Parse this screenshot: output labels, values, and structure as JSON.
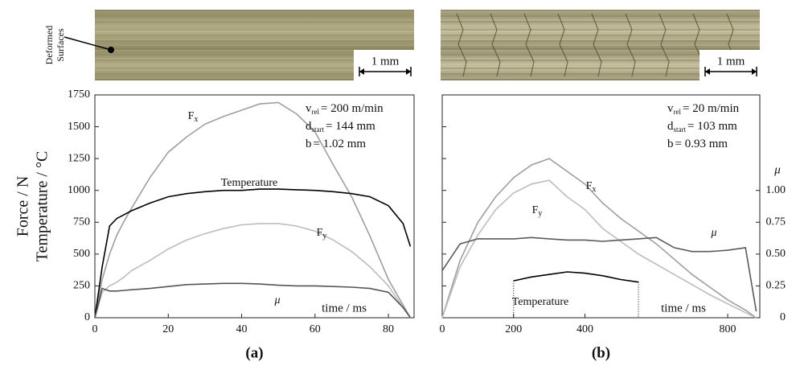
{
  "chart_data": [
    {
      "type": "line",
      "panel_label": "(a)",
      "image_label": [
        "Deformed",
        "Surfaces"
      ],
      "scale_bar": "1 mm",
      "ylabel": [
        "Force / N",
        "Temperature / °C"
      ],
      "xlabel": "time / ms",
      "annotations": [
        {
          "symbol": "v",
          "subscript": "rel",
          "text": "= 200 m/min"
        },
        {
          "symbol": "d",
          "subscript": "start",
          "text": "= 144 mm"
        },
        {
          "symbol": "b",
          "subscript": null,
          "text": "= 1.02 mm"
        }
      ],
      "xlim": [
        0,
        87
      ],
      "xticks": [
        0,
        20,
        40,
        60,
        80
      ],
      "ylim": [
        0,
        1750
      ],
      "yticks": [
        0,
        250,
        500,
        750,
        1000,
        1250,
        1500,
        1750
      ],
      "ytick_labels": true,
      "x": [
        0,
        2,
        4,
        6,
        8,
        10,
        15,
        20,
        25,
        30,
        35,
        40,
        45,
        50,
        55,
        60,
        65,
        70,
        75,
        80,
        84,
        86
      ],
      "series": [
        {
          "name": "Fx",
          "color": "#9e9e9e",
          "values": [
            0,
            300,
            500,
            650,
            760,
            860,
            1100,
            1300,
            1420,
            1520,
            1580,
            1630,
            1680,
            1690,
            1600,
            1460,
            1200,
            950,
            640,
            300,
            100,
            0
          ]
        },
        {
          "name": "Temperature",
          "color": "#000000",
          "values": [
            0,
            400,
            720,
            780,
            810,
            840,
            900,
            950,
            975,
            990,
            1000,
            1000,
            1010,
            1010,
            1005,
            1000,
            990,
            975,
            950,
            880,
            740,
            560
          ]
        },
        {
          "name": "Fy",
          "color": "#bdbdbd",
          "values": [
            0,
            200,
            250,
            280,
            320,
            370,
            450,
            540,
            610,
            660,
            700,
            730,
            740,
            740,
            720,
            680,
            610,
            520,
            400,
            250,
            80,
            0
          ]
        },
        {
          "name": "μ",
          "color": "#555555",
          "values": [
            0,
            230,
            210,
            210,
            215,
            220,
            230,
            245,
            260,
            265,
            270,
            270,
            265,
            255,
            250,
            250,
            245,
            240,
            230,
            200,
            80,
            0
          ]
        }
      ]
    },
    {
      "type": "line",
      "panel_label": "(b)",
      "scale_bar": "1 mm",
      "xlabel": "time / ms",
      "annotations": [
        {
          "symbol": "v",
          "subscript": "rel",
          "text": "= 20 m/min"
        },
        {
          "symbol": "d",
          "subscript": "start",
          "text": "= 103 mm"
        },
        {
          "symbol": "b",
          "subscript": null,
          "text": "= 0.93 mm"
        }
      ],
      "xlim": [
        0,
        890
      ],
      "xticks": [
        0,
        200,
        400,
        800
      ],
      "ylim": [
        0,
        1750
      ],
      "yticks": [
        0,
        250,
        500,
        750,
        1000,
        1250,
        1500,
        1750
      ],
      "ytick_labels": false,
      "y2label": "μ",
      "y2lim": [
        0,
        1.75
      ],
      "y2ticks": [
        0,
        0.25,
        {
          "value": 0.5,
          "label": "0.50"
        },
        0.75,
        {
          "value": 1,
          "label": "1.00"
        }
      ],
      "x": [
        0,
        50,
        100,
        150,
        200,
        250,
        300,
        350,
        400,
        450,
        500,
        550,
        600,
        650,
        700,
        750,
        800,
        850,
        880
      ],
      "series": [
        {
          "name": "Fx",
          "color": "#9e9e9e",
          "values": [
            0,
            450,
            750,
            950,
            1100,
            1200,
            1250,
            1150,
            1050,
            900,
            780,
            680,
            580,
            460,
            340,
            240,
            140,
            60,
            0
          ]
        },
        {
          "name": "Fy",
          "color": "#bdbdbd",
          "values": [
            0,
            400,
            650,
            850,
            980,
            1050,
            1080,
            950,
            850,
            700,
            600,
            500,
            420,
            340,
            260,
            180,
            110,
            40,
            0
          ]
        },
        {
          "name": "μ",
          "color": "#5a5a5a",
          "axis": "y2",
          "values": [
            0.37,
            0.58,
            0.62,
            0.62,
            0.62,
            0.63,
            0.62,
            0.61,
            0.61,
            0.6,
            0.61,
            0.62,
            0.63,
            0.55,
            0.52,
            0.52,
            0.53,
            0.55,
            0.05
          ]
        },
        {
          "name": "Temperature",
          "color": "#000000",
          "values": [
            null,
            null,
            null,
            null,
            290,
            320,
            340,
            360,
            350,
            330,
            300,
            280,
            null,
            null,
            null,
            null,
            null,
            null,
            null
          ]
        }
      ]
    }
  ]
}
